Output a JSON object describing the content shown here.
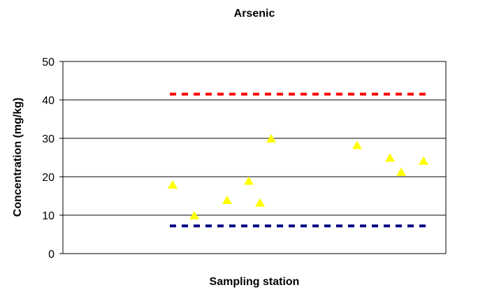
{
  "chart_data": {
    "type": "scatter",
    "title": "Arsenic",
    "xlabel": "Sampling station",
    "ylabel": "Concentration (mg/kg)",
    "ylim": [
      0,
      50
    ],
    "yticks": [
      0,
      10,
      20,
      30,
      40,
      50
    ],
    "grid": "horizontal",
    "legend": "none",
    "series": [
      {
        "marker": "triangle",
        "color": "#ffff00",
        "x": [
          1,
          2,
          3,
          4,
          5,
          6,
          7,
          8,
          9,
          10,
          11
        ],
        "y": [
          18,
          10,
          14,
          19,
          13.3,
          30,
          28.3,
          25,
          21.3,
          24.2,
          null
        ]
      }
    ],
    "reference_lines": [
      {
        "y": 41.5,
        "color": "#ff0000",
        "style": "dashed"
      },
      {
        "y": 7.2,
        "color": "#000080",
        "style": "dashed"
      }
    ]
  }
}
